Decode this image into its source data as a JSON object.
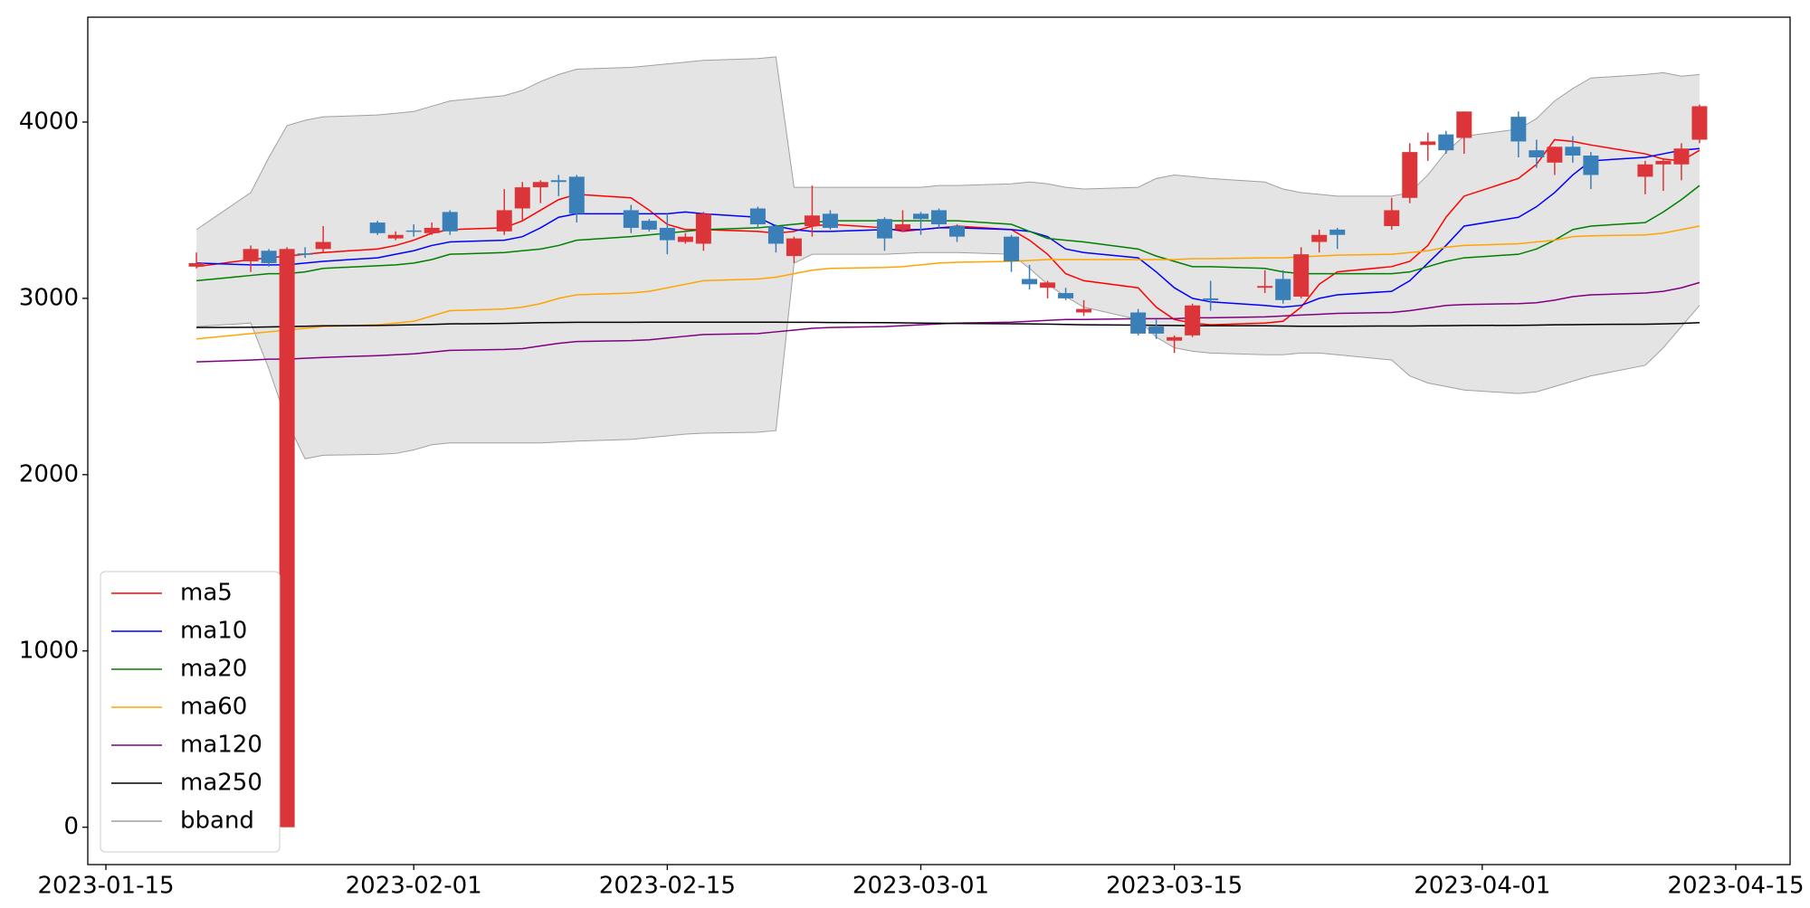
{
  "chart_data": {
    "type": "candlestick",
    "x": [
      "2023-01-20",
      "2023-01-23",
      "2023-01-24",
      "2023-01-25",
      "2023-01-26",
      "2023-01-27",
      "2023-01-30",
      "2023-01-31",
      "2023-02-01",
      "2023-02-02",
      "2023-02-03",
      "2023-02-06",
      "2023-02-07",
      "2023-02-08",
      "2023-02-09",
      "2023-02-10",
      "2023-02-13",
      "2023-02-14",
      "2023-02-15",
      "2023-02-16",
      "2023-02-17",
      "2023-02-20",
      "2023-02-21",
      "2023-02-22",
      "2023-02-23",
      "2023-02-24",
      "2023-02-27",
      "2023-02-28",
      "2023-03-01",
      "2023-03-02",
      "2023-03-03",
      "2023-03-06",
      "2023-03-07",
      "2023-03-08",
      "2023-03-09",
      "2023-03-10",
      "2023-03-13",
      "2023-03-14",
      "2023-03-15",
      "2023-03-16",
      "2023-03-17",
      "2023-03-20",
      "2023-03-21",
      "2023-03-22",
      "2023-03-23",
      "2023-03-24",
      "2023-03-27",
      "2023-03-28",
      "2023-03-29",
      "2023-03-30",
      "2023-03-31",
      "2023-04-03",
      "2023-04-04",
      "2023-04-05",
      "2023-04-06",
      "2023-04-07",
      "2023-04-10",
      "2023-04-11",
      "2023-04-12",
      "2023-04-13"
    ],
    "xlim": [
      "2023-01-14",
      "2023-04-18"
    ],
    "xticks": [
      "2023-01-15",
      "2023-02-01",
      "2023-02-15",
      "2023-03-01",
      "2023-03-15",
      "2023-04-01",
      "2023-04-15"
    ],
    "ylim": [
      -212,
      4595
    ],
    "yticks": [
      0,
      1000,
      2000,
      3000,
      4000
    ],
    "up_color": "#dc3539",
    "down_color": "#3b7fb9",
    "open": [
      3180,
      3210,
      3270,
      0,
      3255,
      3280,
      3430,
      3340,
      3385,
      3370,
      3490,
      3380,
      3510,
      3630,
      3670,
      3690,
      3500,
      3440,
      3400,
      3320,
      3310,
      3510,
      3410,
      3240,
      3410,
      3480,
      3450,
      3390,
      3480,
      3500,
      3410,
      3350,
      3110,
      3060,
      3030,
      2920,
      2920,
      2840,
      2760,
      2790,
      3000,
      3060,
      3110,
      3010,
      3320,
      3390,
      3410,
      3570,
      3870,
      3930,
      3910,
      4030,
      3840,
      3770,
      3860,
      3810,
      3690,
      3760,
      3760,
      3900
    ],
    "high": [
      3260,
      3300,
      3280,
      3290,
      3290,
      3410,
      3440,
      3380,
      3420,
      3430,
      3500,
      3620,
      3660,
      3670,
      3700,
      3700,
      3530,
      3450,
      3480,
      3370,
      3490,
      3520,
      3420,
      3350,
      3640,
      3500,
      3460,
      3500,
      3490,
      3510,
      3420,
      3360,
      3190,
      3100,
      3060,
      2990,
      2940,
      2880,
      2790,
      2970,
      3100,
      3160,
      3160,
      3290,
      3390,
      3400,
      3570,
      3880,
      3940,
      3950,
      4060,
      4060,
      3900,
      3860,
      3920,
      3830,
      3780,
      3790,
      3880,
      4100
    ],
    "low": [
      3170,
      3150,
      3180,
      0,
      3230,
      3260,
      3360,
      3330,
      3350,
      3360,
      3360,
      3360,
      3440,
      3540,
      3580,
      3430,
      3370,
      3380,
      3250,
      3310,
      3270,
      3400,
      3260,
      3200,
      3350,
      3390,
      3270,
      3380,
      3360,
      3400,
      3320,
      3150,
      3050,
      3000,
      2990,
      2900,
      2790,
      2770,
      2690,
      2780,
      2930,
      3030,
      2970,
      3000,
      3260,
      3280,
      3390,
      3540,
      3780,
      3820,
      3820,
      3800,
      3740,
      3700,
      3770,
      3620,
      3590,
      3610,
      3670,
      3880
    ],
    "close": [
      3200,
      3280,
      3200,
      3280,
      3250,
      3320,
      3370,
      3360,
      3380,
      3400,
      3380,
      3500,
      3630,
      3660,
      3660,
      3480,
      3400,
      3390,
      3330,
      3350,
      3480,
      3420,
      3310,
      3340,
      3470,
      3400,
      3340,
      3420,
      3450,
      3420,
      3350,
      3210,
      3080,
      3090,
      3000,
      2940,
      2800,
      2800,
      2780,
      2960,
      2990,
      3070,
      2990,
      3250,
      3360,
      3360,
      3500,
      3830,
      3890,
      3840,
      4060,
      3890,
      3800,
      3860,
      3810,
      3700,
      3760,
      3780,
      3850,
      4090
    ],
    "lines": [
      {
        "name": "ma5",
        "color": "#ff0000",
        "values": [
          3180,
          3220,
          3230,
          3240,
          3250,
          3260,
          3280,
          3300,
          3330,
          3370,
          3390,
          3400,
          3440,
          3500,
          3560,
          3590,
          3570,
          3500,
          3420,
          3390,
          3390,
          3380,
          3370,
          3380,
          3410,
          3420,
          3400,
          3380,
          3390,
          3400,
          3410,
          3390,
          3330,
          3250,
          3140,
          3100,
          3060,
          2950,
          2880,
          2860,
          2850,
          2860,
          2870,
          2950,
          3080,
          3150,
          3180,
          3210,
          3300,
          3460,
          3580,
          3680,
          3760,
          3900,
          3890,
          3870,
          3820,
          3790,
          3780,
          3840
        ]
      },
      {
        "name": "ma10",
        "color": "#0000ff",
        "values": [
          3200,
          3190,
          3190,
          3190,
          3200,
          3210,
          3230,
          3250,
          3270,
          3300,
          3320,
          3330,
          3350,
          3400,
          3460,
          3480,
          3480,
          3480,
          3480,
          3490,
          3480,
          3460,
          3410,
          3390,
          3380,
          3380,
          3390,
          3390,
          3390,
          3400,
          3400,
          3390,
          3380,
          3350,
          3280,
          3260,
          3230,
          3150,
          3060,
          3000,
          2980,
          2960,
          2950,
          2960,
          3000,
          3020,
          3040,
          3100,
          3200,
          3300,
          3410,
          3460,
          3520,
          3600,
          3700,
          3780,
          3800,
          3820,
          3840,
          3850
        ]
      },
      {
        "name": "ma20",
        "color": "#008000",
        "values": [
          3100,
          3130,
          3140,
          3140,
          3150,
          3170,
          3185,
          3190,
          3200,
          3220,
          3250,
          3260,
          3270,
          3280,
          3300,
          3330,
          3350,
          3360,
          3370,
          3380,
          3390,
          3400,
          3410,
          3420,
          3430,
          3440,
          3440,
          3440,
          3440,
          3440,
          3440,
          3420,
          3380,
          3340,
          3330,
          3320,
          3280,
          3240,
          3210,
          3180,
          3180,
          3170,
          3150,
          3140,
          3140,
          3140,
          3140,
          3150,
          3180,
          3210,
          3230,
          3250,
          3280,
          3330,
          3390,
          3410,
          3430,
          3490,
          3560,
          3640
        ]
      },
      {
        "name": "ma60",
        "color": "#ffa500",
        "values": [
          2770,
          2800,
          2810,
          2820,
          2830,
          2840,
          2850,
          2860,
          2870,
          2900,
          2930,
          2940,
          2950,
          2970,
          3000,
          3020,
          3030,
          3040,
          3060,
          3080,
          3100,
          3110,
          3120,
          3140,
          3160,
          3170,
          3175,
          3180,
          3190,
          3200,
          3205,
          3210,
          3215,
          3220,
          3220,
          3220,
          3220,
          3220,
          3220,
          3225,
          3225,
          3230,
          3230,
          3235,
          3240,
          3245,
          3250,
          3260,
          3270,
          3290,
          3300,
          3310,
          3320,
          3330,
          3350,
          3355,
          3360,
          3370,
          3390,
          3410
        ]
      },
      {
        "name": "ma120",
        "color": "#800080",
        "values": [
          2640,
          2650,
          2655,
          2655,
          2660,
          2665,
          2675,
          2680,
          2685,
          2695,
          2705,
          2710,
          2715,
          2730,
          2745,
          2755,
          2760,
          2765,
          2775,
          2785,
          2795,
          2800,
          2810,
          2820,
          2830,
          2835,
          2840,
          2845,
          2850,
          2855,
          2860,
          2865,
          2870,
          2875,
          2880,
          2880,
          2885,
          2885,
          2885,
          2890,
          2890,
          2895,
          2900,
          2905,
          2910,
          2915,
          2920,
          2930,
          2945,
          2960,
          2965,
          2970,
          2975,
          2990,
          3010,
          3020,
          3030,
          3040,
          3060,
          3090
        ]
      },
      {
        "name": "ma250",
        "color": "#000000",
        "values": [
          2835,
          2836,
          2838,
          2840,
          2842,
          2844,
          2846,
          2848,
          2850,
          2852,
          2855,
          2858,
          2860,
          2862,
          2863,
          2864,
          2864,
          2865,
          2865,
          2865,
          2865,
          2865,
          2865,
          2864,
          2864,
          2863,
          2862,
          2861,
          2860,
          2859,
          2858,
          2856,
          2855,
          2854,
          2852,
          2850,
          2848,
          2847,
          2846,
          2845,
          2845,
          2844,
          2843,
          2842,
          2842,
          2842,
          2843,
          2843,
          2844,
          2845,
          2846,
          2847,
          2848,
          2850,
          2851,
          2852,
          2853,
          2855,
          2858,
          2862
        ]
      }
    ],
    "bband": {
      "name": "bband",
      "color": "#a0a0a0",
      "fill": "#e4e4e4",
      "upper": [
        3390,
        3600,
        3800,
        3980,
        4010,
        4030,
        4040,
        4050,
        4060,
        4090,
        4120,
        4150,
        4180,
        4230,
        4270,
        4300,
        4310,
        4320,
        4330,
        4340,
        4350,
        4360,
        4370,
        3630,
        3630,
        3630,
        3630,
        3630,
        3630,
        3640,
        3640,
        3650,
        3660,
        3650,
        3630,
        3620,
        3630,
        3680,
        3700,
        3690,
        3680,
        3660,
        3620,
        3600,
        3590,
        3580,
        3580,
        3600,
        3700,
        3830,
        3920,
        3960,
        4020,
        4120,
        4190,
        4250,
        4270,
        4280,
        4260,
        4270
      ],
      "lower": [
        2840,
        2860,
        2600,
        2300,
        2090,
        2110,
        2115,
        2120,
        2140,
        2170,
        2180,
        2180,
        2180,
        2180,
        2185,
        2190,
        2200,
        2210,
        2220,
        2230,
        2235,
        2240,
        2250,
        3200,
        3250,
        3250,
        3250,
        3255,
        3260,
        3260,
        3260,
        3250,
        3170,
        3080,
        3010,
        2950,
        2880,
        2780,
        2720,
        2700,
        2690,
        2680,
        2680,
        2690,
        2690,
        2680,
        2650,
        2560,
        2520,
        2500,
        2480,
        2460,
        2470,
        2500,
        2530,
        2560,
        2620,
        2720,
        2840,
        2960
      ]
    },
    "legend": "lower left"
  }
}
